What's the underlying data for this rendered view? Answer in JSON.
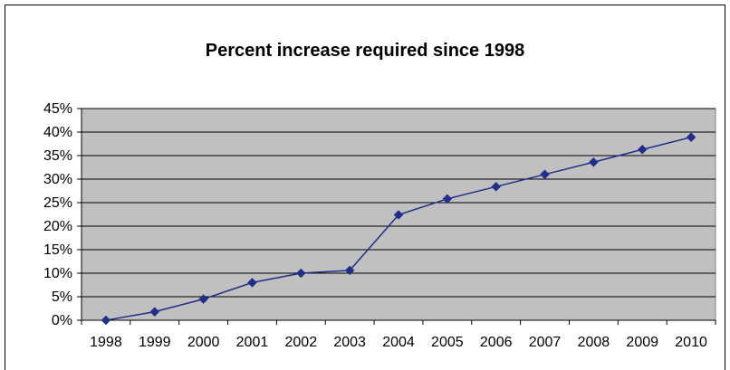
{
  "chart_data": {
    "type": "line",
    "title": "Percent increase required since 1998",
    "xlabel": "",
    "ylabel": "",
    "categories": [
      "1998",
      "1999",
      "2000",
      "2001",
      "2002",
      "2003",
      "2004",
      "2005",
      "2006",
      "2007",
      "2008",
      "2009",
      "2010"
    ],
    "series": [
      {
        "values": [
          0,
          1.8,
          4.5,
          8.0,
          10.0,
          10.6,
          22.4,
          25.8,
          28.4,
          31.0,
          33.6,
          36.3,
          38.9
        ]
      }
    ],
    "ylim": [
      0,
      45
    ],
    "yticks": [
      0,
      5,
      10,
      15,
      20,
      25,
      30,
      35,
      40,
      45
    ],
    "ytick_labels": [
      "0%",
      "5%",
      "10%",
      "15%",
      "20%",
      "25%",
      "30%",
      "35%",
      "40%",
      "45%"
    ],
    "grid": true,
    "legend": "none",
    "colors": {
      "plot_background": "#C0C0C0",
      "line": "#1F2F8A",
      "marker": "#1F2F8A",
      "gridline": "#000000"
    },
    "marker": "diamond"
  }
}
